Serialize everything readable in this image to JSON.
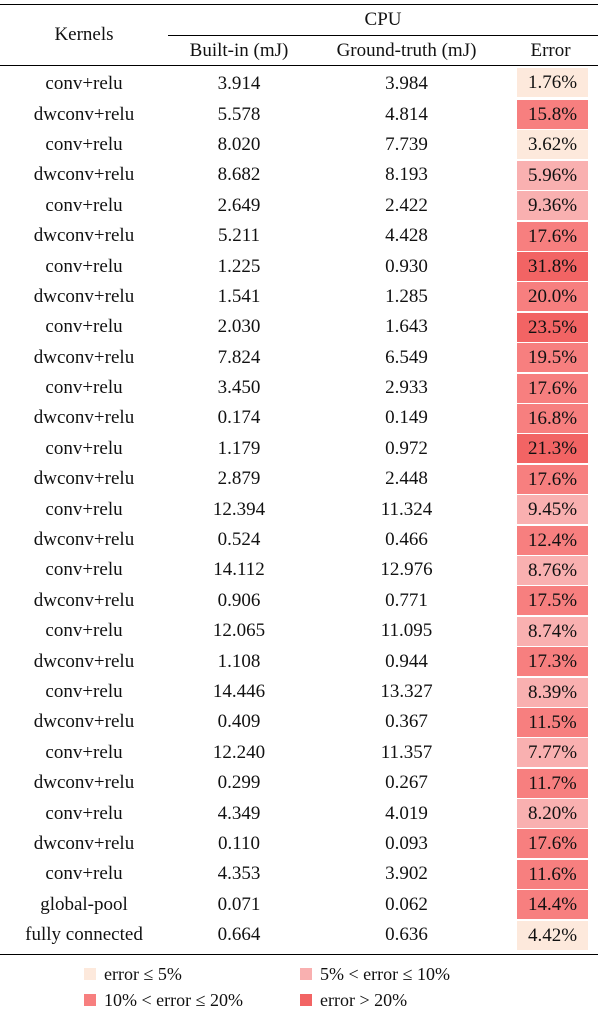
{
  "table": {
    "header": {
      "kernels": "Kernels",
      "group": "CPU",
      "builtin": "Built-in (mJ)",
      "ground_truth": "Ground-truth (mJ)",
      "error": "Error"
    },
    "rows": [
      {
        "kernel": "conv+relu",
        "builtin": "3.914",
        "gt": "3.984",
        "error": "1.76%"
      },
      {
        "kernel": "dwconv+relu",
        "builtin": "5.578",
        "gt": "4.814",
        "error": "15.8%"
      },
      {
        "kernel": "conv+relu",
        "builtin": "8.020",
        "gt": "7.739",
        "error": "3.62%"
      },
      {
        "kernel": "dwconv+relu",
        "builtin": "8.682",
        "gt": "8.193",
        "error": "5.96%"
      },
      {
        "kernel": "conv+relu",
        "builtin": "2.649",
        "gt": "2.422",
        "error": "9.36%"
      },
      {
        "kernel": "dwconv+relu",
        "builtin": "5.211",
        "gt": "4.428",
        "error": "17.6%"
      },
      {
        "kernel": "conv+relu",
        "builtin": "1.225",
        "gt": "0.930",
        "error": "31.8%"
      },
      {
        "kernel": "dwconv+relu",
        "builtin": "1.541",
        "gt": "1.285",
        "error": "20.0%"
      },
      {
        "kernel": "conv+relu",
        "builtin": "2.030",
        "gt": "1.643",
        "error": "23.5%"
      },
      {
        "kernel": "dwconv+relu",
        "builtin": "7.824",
        "gt": "6.549",
        "error": "19.5%"
      },
      {
        "kernel": "conv+relu",
        "builtin": "3.450",
        "gt": "2.933",
        "error": "17.6%"
      },
      {
        "kernel": "dwconv+relu",
        "builtin": "0.174",
        "gt": "0.149",
        "error": "16.8%"
      },
      {
        "kernel": "conv+relu",
        "builtin": "1.179",
        "gt": "0.972",
        "error": "21.3%"
      },
      {
        "kernel": "dwconv+relu",
        "builtin": "2.879",
        "gt": "2.448",
        "error": "17.6%"
      },
      {
        "kernel": "conv+relu",
        "builtin": "12.394",
        "gt": "11.324",
        "error": "9.45%"
      },
      {
        "kernel": "dwconv+relu",
        "builtin": "0.524",
        "gt": "0.466",
        "error": "12.4%"
      },
      {
        "kernel": "conv+relu",
        "builtin": "14.112",
        "gt": "12.976",
        "error": "8.76%"
      },
      {
        "kernel": "dwconv+relu",
        "builtin": "0.906",
        "gt": "0.771",
        "error": "17.5%"
      },
      {
        "kernel": "conv+relu",
        "builtin": "12.065",
        "gt": "11.095",
        "error": "8.74%"
      },
      {
        "kernel": "dwconv+relu",
        "builtin": "1.108",
        "gt": "0.944",
        "error": "17.3%"
      },
      {
        "kernel": "conv+relu",
        "builtin": "14.446",
        "gt": "13.327",
        "error": "8.39%"
      },
      {
        "kernel": "dwconv+relu",
        "builtin": "0.409",
        "gt": "0.367",
        "error": "11.5%"
      },
      {
        "kernel": "conv+relu",
        "builtin": "12.240",
        "gt": "11.357",
        "error": "7.77%"
      },
      {
        "kernel": "dwconv+relu",
        "builtin": "0.299",
        "gt": "0.267",
        "error": "11.7%"
      },
      {
        "kernel": "conv+relu",
        "builtin": "4.349",
        "gt": "4.019",
        "error": "8.20%"
      },
      {
        "kernel": "dwconv+relu",
        "builtin": "0.110",
        "gt": "0.093",
        "error": "17.6%"
      },
      {
        "kernel": "conv+relu",
        "builtin": "4.353",
        "gt": "3.902",
        "error": "11.6%"
      },
      {
        "kernel": "global-pool",
        "builtin": "0.071",
        "gt": "0.062",
        "error": "14.4%"
      },
      {
        "kernel": "fully connected",
        "builtin": "0.664",
        "gt": "0.636",
        "error": "4.42%"
      }
    ]
  },
  "legend": [
    {
      "label": "error ≤ 5%",
      "color": "#fde9dc"
    },
    {
      "label": "5% < error ≤ 10%",
      "color": "#f9b0b0"
    },
    {
      "label": "10% < error ≤ 20%",
      "color": "#f77f7f"
    },
    {
      "label": "error > 20%",
      "color": "#f26464"
    }
  ]
}
